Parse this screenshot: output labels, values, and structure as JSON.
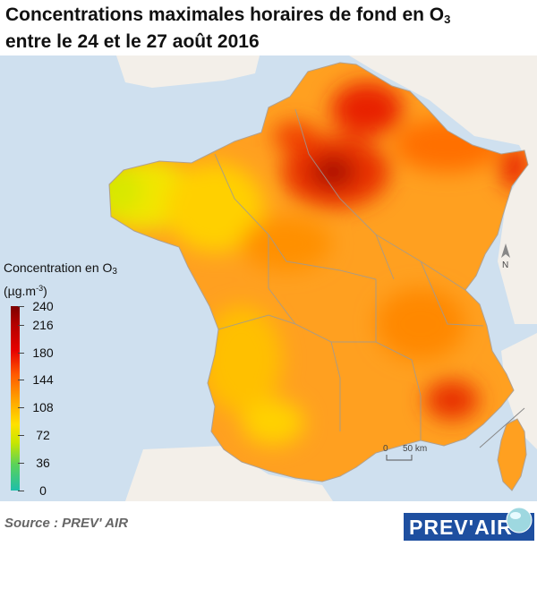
{
  "title": {
    "line1_main": "Concentrations maximales horaires de fond en O",
    "line1_sub": "3",
    "line2": "entre le 24 et le 27 août 2016"
  },
  "legend": {
    "title_main": "Concentration en O",
    "title_sub": "3",
    "unit_open": "(µg.m",
    "unit_sup": "-3",
    "unit_close": ")",
    "ticks": [
      "240",
      "216",
      "180",
      "144",
      "108",
      "72",
      "36",
      "0"
    ],
    "tick_values": [
      240,
      216,
      180,
      144,
      108,
      72,
      36,
      0
    ],
    "colors": [
      "#7d0000",
      "#b40000",
      "#e60000",
      "#ff5a00",
      "#ff9f00",
      "#ffe100",
      "#c8e600",
      "#5ad25a",
      "#1ebeaa"
    ]
  },
  "scale_bar": {
    "zero": "0",
    "label": "50 km"
  },
  "north_label": "N",
  "source": "Source : PREV' AIR",
  "logo": {
    "text_a": "PREV",
    "text_b": "'AIR"
  },
  "colors": {
    "sea": "#cfe0ef",
    "land_outside": "#f3efe9",
    "base_land": "#ffa020",
    "brittany": "#f0e000",
    "paris_hotspot": "#b01800",
    "logo_bg": "#1e4fa0"
  }
}
